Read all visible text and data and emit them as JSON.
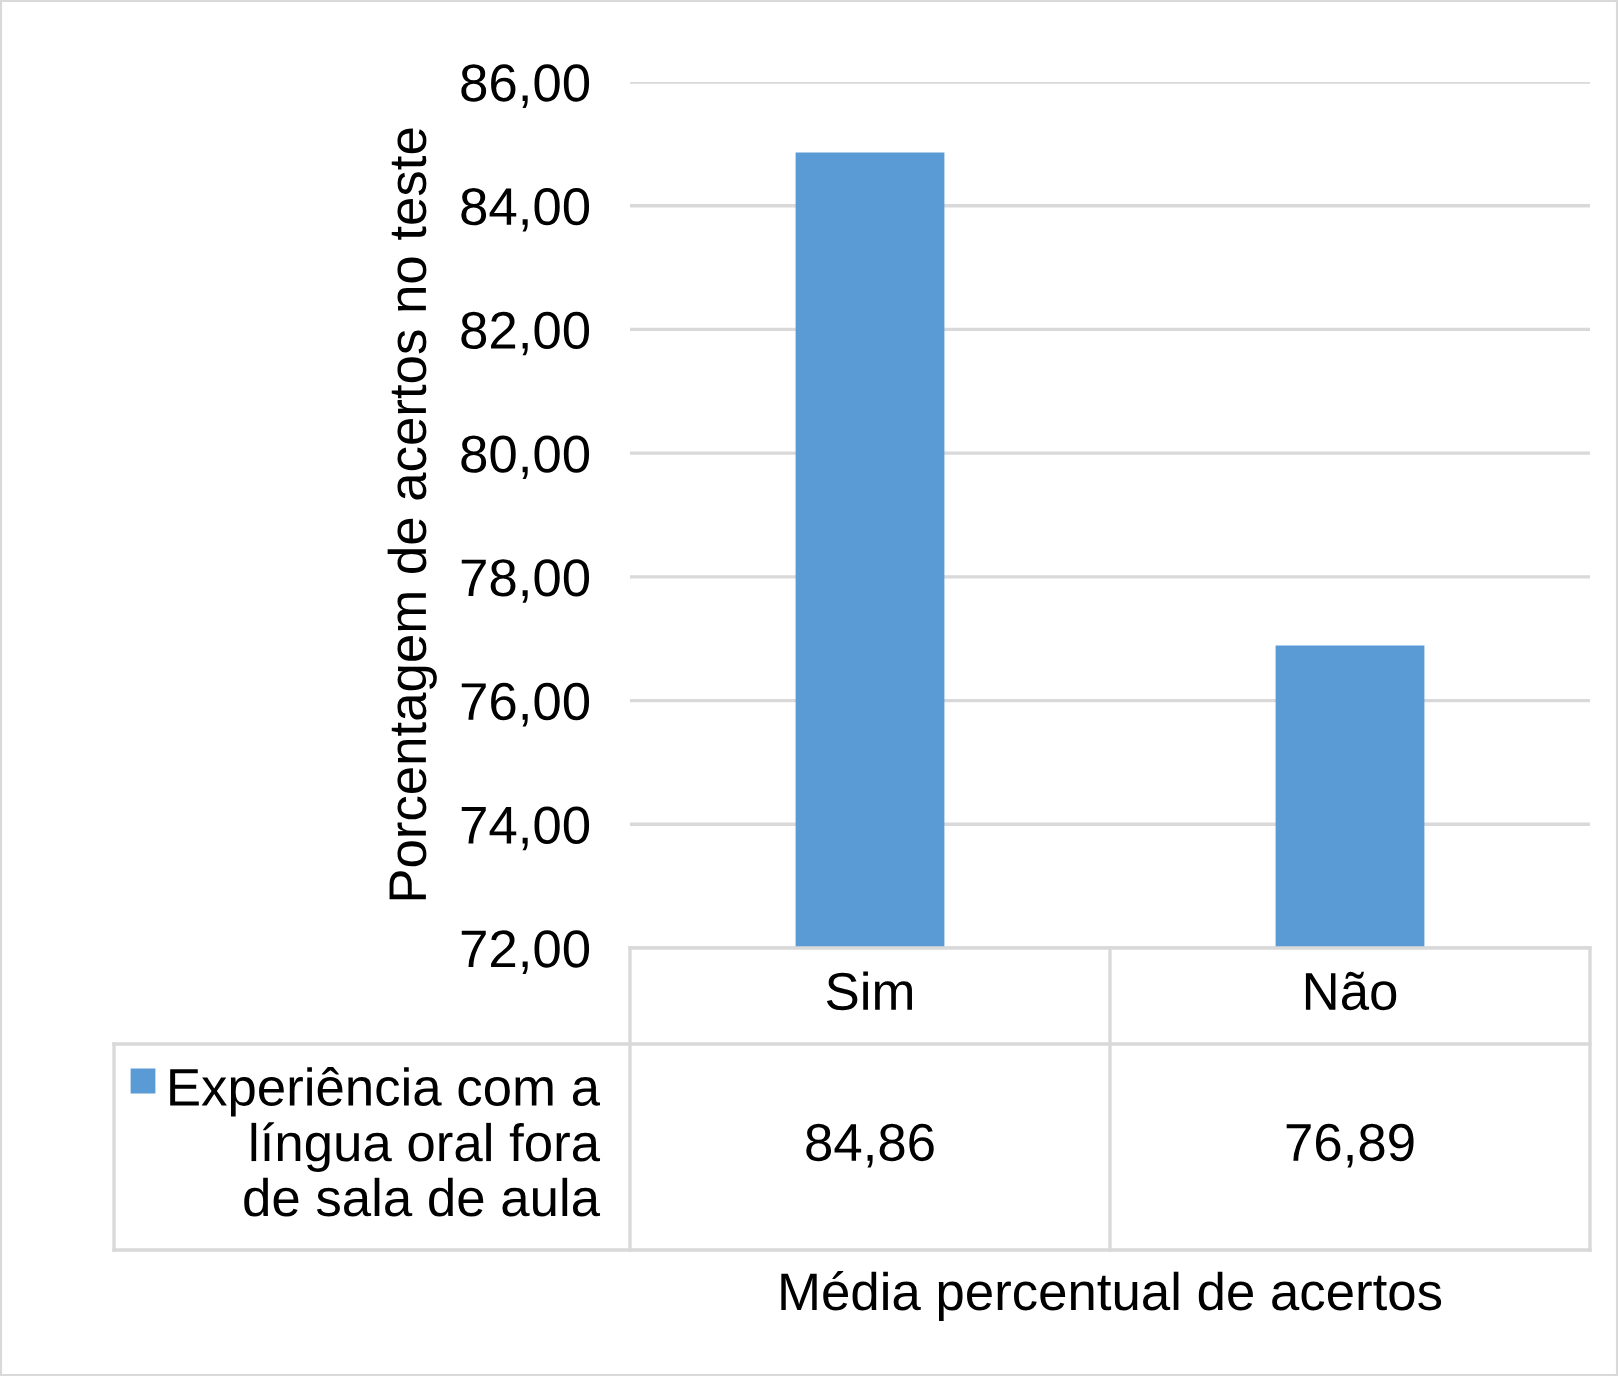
{
  "chart_data": {
    "type": "bar",
    "xlabel": "Média percentual de acertos",
    "ylabel": "Porcentagem de acertos no teste",
    "categories": [
      "Sim",
      "Não"
    ],
    "series": [
      {
        "name": "Experiência com a língua oral fora de sala de aula",
        "color": "#5b9bd5",
        "values": [
          84.86,
          76.89
        ],
        "value_labels": [
          "84,86",
          "76,89"
        ]
      }
    ],
    "ylim": [
      72,
      86
    ],
    "yticks": [
      {
        "value": 72,
        "label": "72,00"
      },
      {
        "value": 74,
        "label": "74,00"
      },
      {
        "value": 76,
        "label": "76,00"
      },
      {
        "value": 78,
        "label": "78,00"
      },
      {
        "value": 80,
        "label": "80,00"
      },
      {
        "value": 82,
        "label": "82,00"
      },
      {
        "value": 84,
        "label": "84,00"
      },
      {
        "value": 86,
        "label": "86,00"
      }
    ],
    "grid": "y",
    "legend": "bottom"
  }
}
